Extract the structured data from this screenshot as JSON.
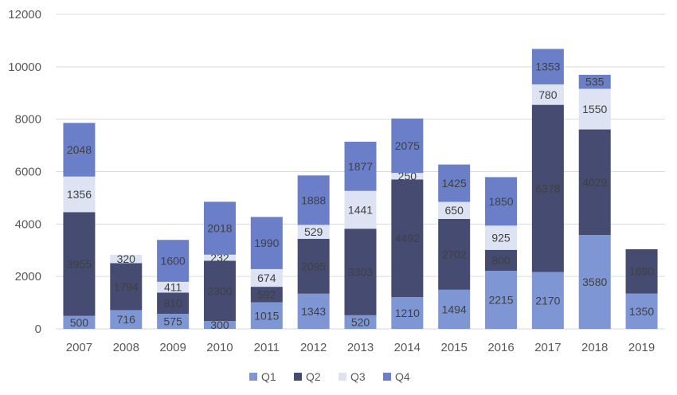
{
  "chart_data": {
    "type": "bar",
    "stacked": true,
    "categories": [
      "2007",
      "2008",
      "2009",
      "2010",
      "2011",
      "2012",
      "2013",
      "2014",
      "2015",
      "2016",
      "2017",
      "2018",
      "2019"
    ],
    "series": [
      {
        "name": "Q1",
        "color": "#7f96d4",
        "values": [
          500,
          716,
          575,
          300,
          1015,
          1343,
          520,
          1210,
          1494,
          2215,
          2170,
          3580,
          1350
        ]
      },
      {
        "name": "Q2",
        "color": "#454b71",
        "values": [
          3955,
          1794,
          810,
          2300,
          592,
          2095,
          3303,
          4492,
          2702,
          800,
          6378,
          4029,
          1690
        ]
      },
      {
        "name": "Q3",
        "color": "#dde3f2",
        "values": [
          1356,
          320,
          411,
          232,
          674,
          529,
          1441,
          250,
          650,
          925,
          780,
          1550,
          null
        ]
      },
      {
        "name": "Q4",
        "color": "#6b7fc9",
        "values": [
          2048,
          null,
          1600,
          2018,
          1990,
          1888,
          1877,
          2075,
          1425,
          1850,
          1353,
          535,
          null
        ]
      }
    ],
    "yticks": [
      0,
      2000,
      4000,
      6000,
      8000,
      10000,
      12000
    ],
    "ylim": [
      0,
      12000
    ],
    "grid": true,
    "legend_position": "bottom"
  }
}
